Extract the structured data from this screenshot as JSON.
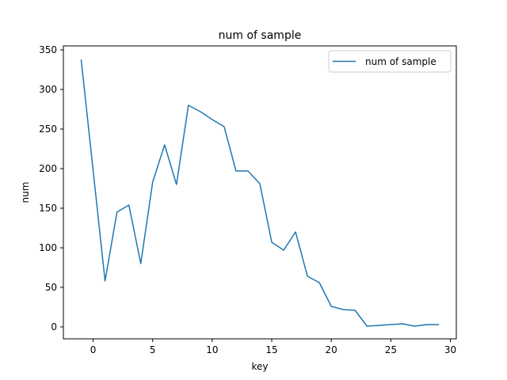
{
  "chart_data": {
    "type": "line",
    "title": "num of sample",
    "xlabel": "key",
    "ylabel": "num",
    "xlim": [
      -2.5,
      30.5
    ],
    "ylim": [
      -15,
      355
    ],
    "xticks": [
      0,
      5,
      10,
      15,
      20,
      25,
      30
    ],
    "yticks": [
      0,
      50,
      100,
      150,
      200,
      250,
      300,
      350
    ],
    "grid": false,
    "legend_position": "top-right",
    "series": [
      {
        "name": "num of sample",
        "color": "#1f77b4",
        "x": [
          -1,
          1,
          2,
          3,
          4,
          5,
          6,
          7,
          8,
          9,
          10,
          11,
          12,
          13,
          14,
          15,
          16,
          17,
          18,
          19,
          20,
          21,
          22,
          23,
          24,
          25,
          26,
          27,
          28,
          29
        ],
        "y": [
          337,
          58,
          145,
          154,
          80,
          183,
          230,
          180,
          280,
          272,
          262,
          253,
          197,
          197,
          181,
          107,
          97,
          120,
          64,
          56,
          26,
          22,
          21,
          1,
          2,
          3,
          4,
          1,
          3,
          3
        ]
      }
    ]
  }
}
